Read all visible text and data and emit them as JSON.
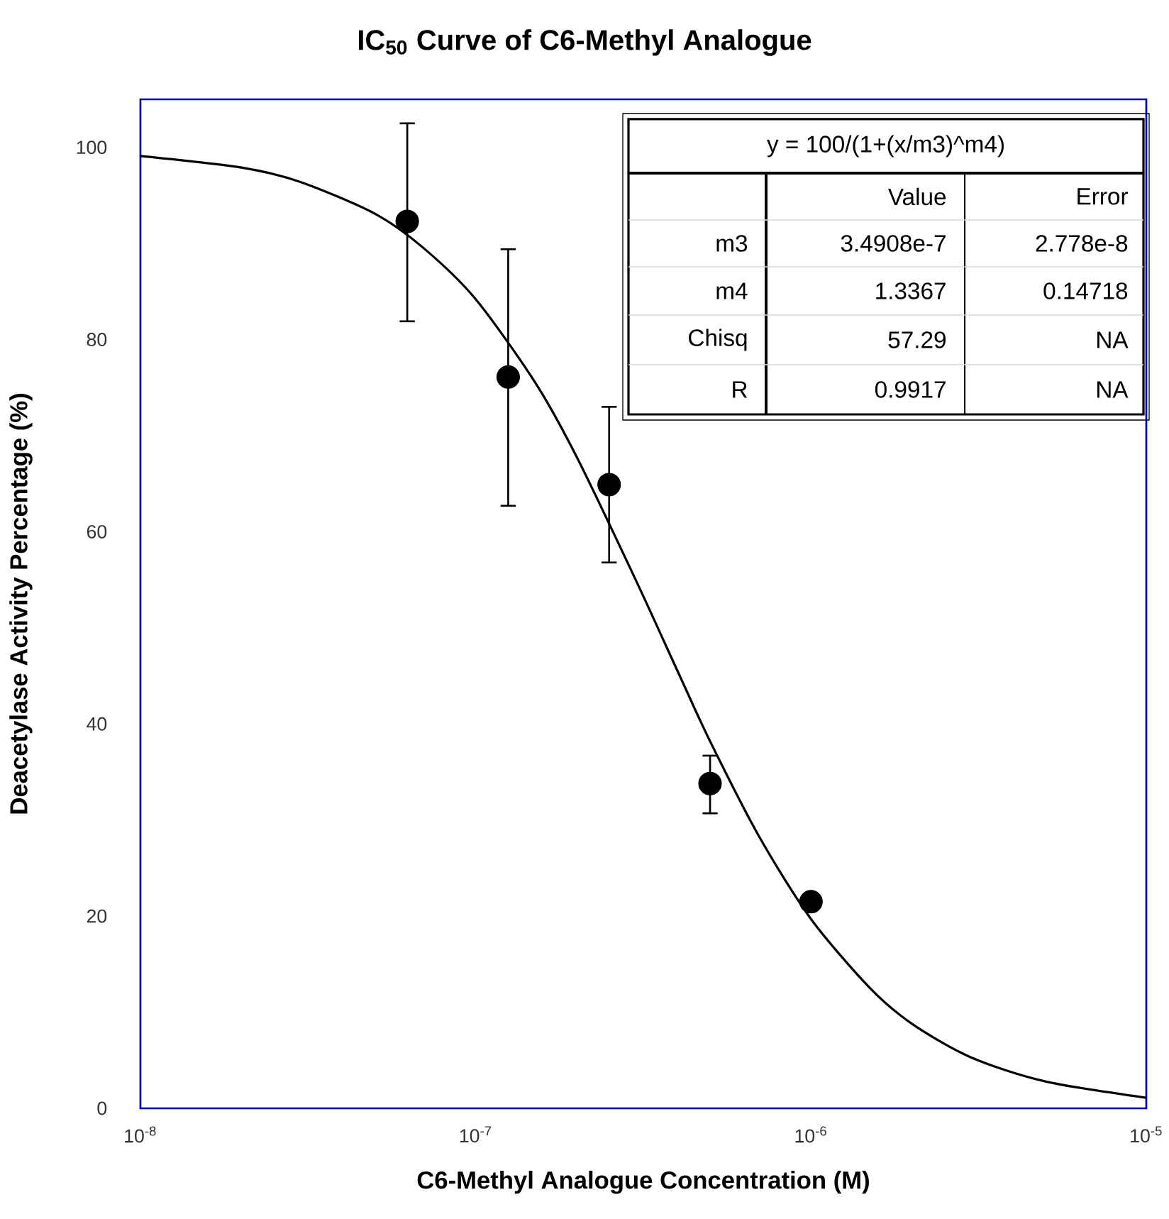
{
  "chart_data": {
    "type": "scatter",
    "title": "IC$_{50}$ Curve of C6-Methyl Analogue",
    "xlabel": "C6-Methyl Analogue Concentration (M)",
    "ylabel": "Deacetylase Activity Percentage (%)",
    "log": "x",
    "xlim": [
      1e-08,
      1e-05
    ],
    "ylim": [
      0,
      105
    ],
    "xticks": [
      {
        "value": 1e-08,
        "label": "10$^{-8}$"
      },
      {
        "value": 1e-07,
        "label": "10$^{-7}$"
      },
      {
        "value": 1e-06,
        "label": "10$^{-6}$"
      },
      {
        "value": 1e-05,
        "label": "10$^{-5}$"
      }
    ],
    "yticks": [
      0,
      20,
      40,
      60,
      80,
      100
    ],
    "series": [
      {
        "color": "#000000",
        "marker": "circle",
        "x": [
          6.25e-08,
          1.25e-07,
          2.5e-07,
          5e-07,
          1e-06
        ],
        "values": [
          92.3,
          76.1,
          64.9,
          33.8,
          21.5
        ],
        "errors": [
          [
            81.9,
            102.5
          ],
          [
            62.7,
            89.4
          ],
          [
            56.8,
            73.0
          ],
          [
            30.7,
            36.7
          ],
          null
        ]
      },
      {
        "type": "line",
        "color": "#000000",
        "marker": "none",
        "x": [
          1e-08,
          2e-08,
          3e-08,
          5e-08,
          7e-08,
          1e-07,
          1.5e-07,
          2e-07,
          3e-07,
          4e-07,
          5e-07,
          7e-07,
          1e-06,
          1.5e-06,
          2e-06,
          3e-06,
          5e-06,
          1e-05
        ],
        "values": [
          99.1,
          97.9,
          96.4,
          93.1,
          89.5,
          84.2,
          75.6,
          67.8,
          55.0,
          45.5,
          38.2,
          28.3,
          19.7,
          12.5,
          8.8,
          5.3,
          2.8,
          1.1
        ]
      }
    ],
    "annotations": [
      "y = 100/(1+(x/m3)^m4)",
      "Value",
      "Error",
      "m3",
      "3.4908e-7",
      "2.778e-8",
      "m4",
      "1.3367",
      "0.14718",
      "Chisq",
      "57.29",
      "NA",
      "R",
      "0.9917",
      "NA"
    ]
  }
}
